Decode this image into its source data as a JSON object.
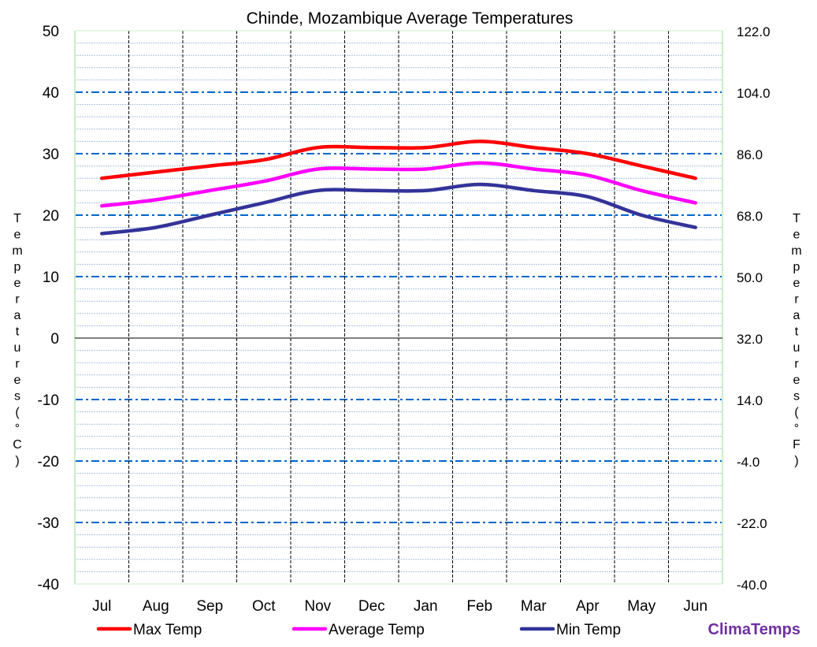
{
  "chart_data": {
    "type": "line",
    "title": "Chinde, Mozambique Average  Temperatures",
    "categories": [
      "Jul",
      "Aug",
      "Sep",
      "Oct",
      "Nov",
      "Dec",
      "Jan",
      "Feb",
      "Mar",
      "Apr",
      "May",
      "Jun"
    ],
    "series": [
      {
        "name": "Max Temp",
        "color": "#ff0000",
        "values": [
          26,
          27,
          28,
          29,
          31,
          31,
          31,
          32,
          31,
          30,
          28,
          26
        ]
      },
      {
        "name": "Average Temp",
        "color": "#ff00ff",
        "values": [
          21.5,
          22.5,
          24,
          25.5,
          27.5,
          27.5,
          27.5,
          28.5,
          27.5,
          26.5,
          24,
          22
        ]
      },
      {
        "name": "Min Temp",
        "color": "#333399",
        "values": [
          17,
          18,
          20,
          22,
          24,
          24,
          24,
          25,
          24,
          23,
          20,
          18
        ]
      }
    ],
    "ylim": [
      -40,
      50
    ],
    "yticks": [
      "50",
      "40",
      "30",
      "20",
      "10",
      "0",
      "-10",
      "-20",
      "-30",
      "-40"
    ],
    "y2ticks": [
      "122.0",
      "104.0",
      "86.0",
      "68.0",
      "50.0",
      "32.0",
      "14.0",
      "-4.0",
      "-22.0",
      "-40.0"
    ],
    "ylabel": "Temperatures (°C)",
    "y2label": "Temperatures (°F)",
    "grid": true,
    "legend": "bottom"
  },
  "brand": "ClimaTemps",
  "brand_color": "#7030a0"
}
